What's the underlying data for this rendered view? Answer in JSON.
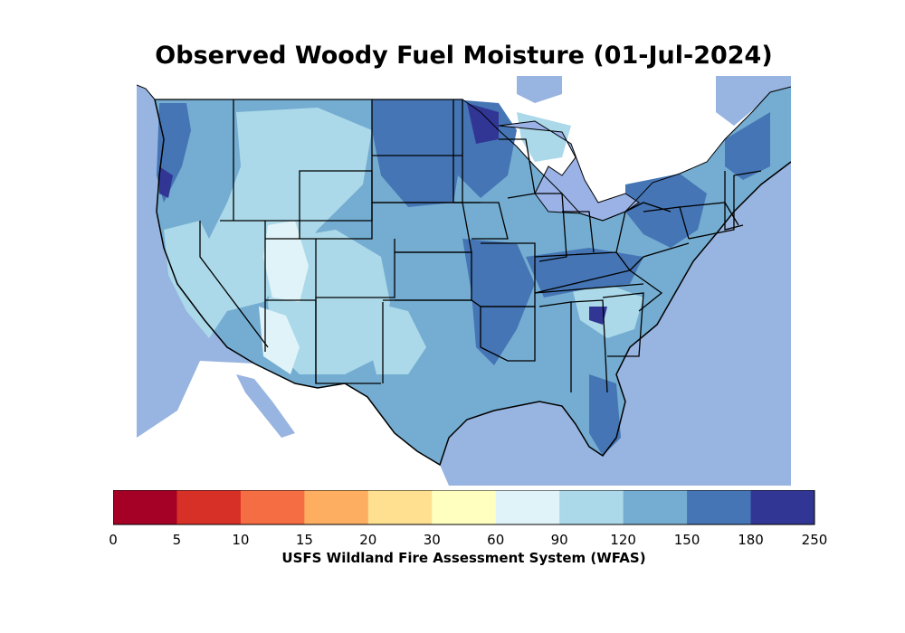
{
  "title": "Observed Woody Fuel Moisture (01-Jul-2024)",
  "colorbar": {
    "label": "USFS Wildland Fire Assessment System (WFAS)",
    "ticks": [
      "0",
      "5",
      "10",
      "15",
      "20",
      "30",
      "60",
      "90",
      "120",
      "150",
      "180",
      "250"
    ],
    "colors": [
      "#a50026",
      "#d73027",
      "#f46d43",
      "#fdae61",
      "#fee090",
      "#ffffbf",
      "#e0f3f8",
      "#abd9e9",
      "#74add1",
      "#4575b4",
      "#313695"
    ]
  },
  "map": {
    "ocean_color": "#98b4e0",
    "land_outside_color": "#ffffff",
    "lake_color": "#9ab2e6",
    "border_color": "#000000"
  }
}
